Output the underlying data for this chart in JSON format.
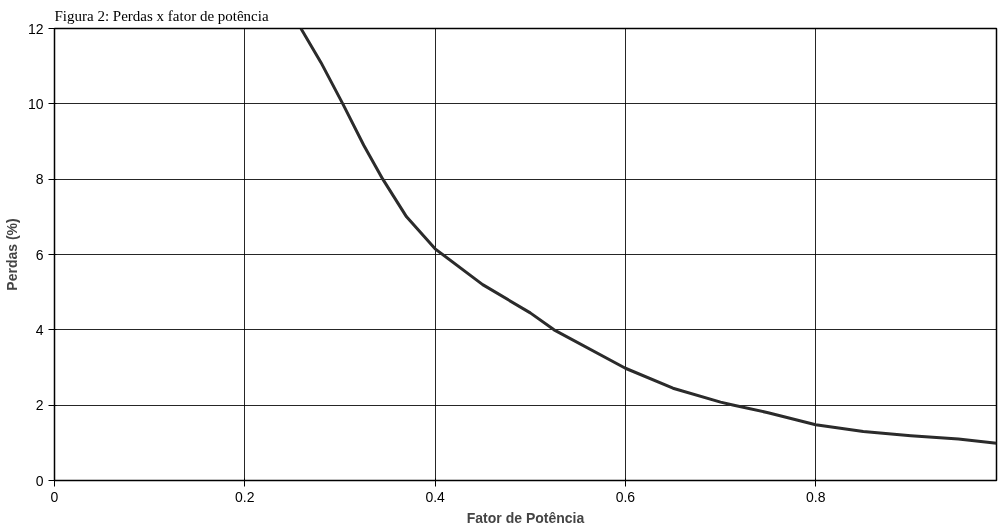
{
  "chart_data": {
    "type": "line",
    "title": "Figura 2: Perdas x fator de potência",
    "xlabel": "Fator de Potência",
    "ylabel": "Perdas (%)",
    "x": [
      0.259,
      0.28,
      0.303,
      0.325,
      0.345,
      0.37,
      0.4,
      0.45,
      0.5,
      0.525,
      0.6,
      0.65,
      0.7,
      0.714,
      0.75,
      0.8,
      0.85,
      0.9,
      0.95,
      0.99
    ],
    "series": [
      {
        "color": "#2b2b2b",
        "values": [
          12,
          11.1,
          10,
          8.9,
          8,
          7.0,
          6.15,
          5.2,
          4.45,
          4,
          2.98,
          2.45,
          2.08,
          2,
          1.8,
          1.48,
          1.3,
          1.19,
          1.1,
          0.99
        ]
      }
    ],
    "xlim": [
      0,
      0.99
    ],
    "ylim": [
      0,
      12
    ],
    "xticks": [
      0,
      0.2,
      0.4,
      0.6,
      0.8
    ],
    "yticks": [
      0,
      2,
      4,
      6,
      8,
      10,
      12
    ],
    "grid": true,
    "marker": "none",
    "line_style": "solid"
  }
}
